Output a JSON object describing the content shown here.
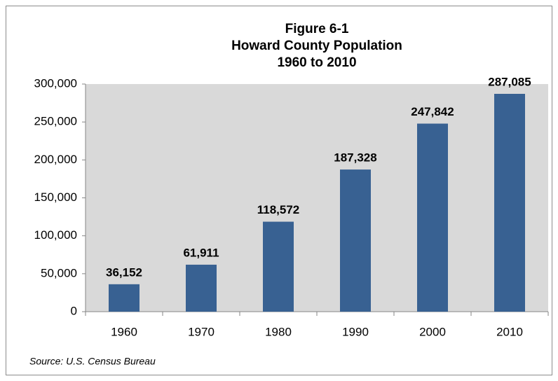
{
  "chart_data": {
    "type": "bar",
    "title_lines": [
      "Figure 6-1",
      "Howard County Population",
      "1960 to 2010"
    ],
    "categories": [
      "1960",
      "1970",
      "1980",
      "1990",
      "2000",
      "2010"
    ],
    "values": [
      36152,
      61911,
      118572,
      187328,
      247842,
      287085
    ],
    "value_labels": [
      "36,152",
      "61,911",
      "118,572",
      "187,328",
      "247,842",
      "287,085"
    ],
    "color": "#386192",
    "ylim": [
      0,
      300000
    ],
    "yticks": [
      0,
      {
        "value": 50000,
        "label": "50,000"
      },
      {
        "value": 100000,
        "label": "100,000"
      },
      {
        "value": 150000,
        "label": "150,000"
      },
      {
        "value": 200000,
        "label": "200,000"
      },
      {
        "value": 250000,
        "label": "250,000"
      },
      {
        "value": 300000,
        "label": "300,000"
      }
    ],
    "grid": false,
    "source": "Source:  U.S. Census Bureau"
  }
}
